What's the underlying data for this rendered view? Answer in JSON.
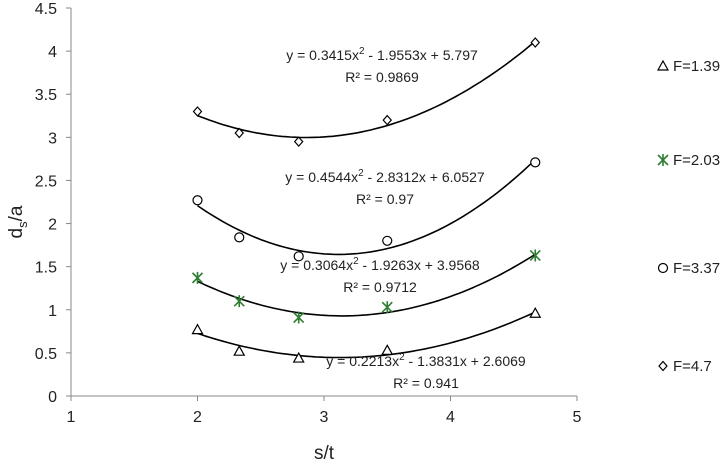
{
  "chart_data": {
    "type": "scatter",
    "xlabel": "s/t",
    "ylabel_main": "d",
    "ylabel_sub": "s",
    "ylabel_tail": "/a",
    "xlim": [
      1,
      5
    ],
    "ylim": [
      0,
      4.5
    ],
    "x_ticks": [
      "1",
      "2",
      "3",
      "4",
      "5"
    ],
    "y_ticks": [
      "0",
      "0.5",
      "1",
      "1.5",
      "2",
      "2.5",
      "3",
      "3.5",
      "4",
      "4.5"
    ],
    "grid": false,
    "legend_position": "right",
    "series": [
      {
        "name": "F=1.39",
        "marker": "triangle",
        "color": "#000000",
        "x": [
          2.0,
          2.33,
          2.8,
          3.5,
          4.67
        ],
        "y": [
          0.77,
          0.52,
          0.44,
          0.53,
          0.96
        ],
        "fit": {
          "a": 0.2213,
          "b": -1.3831,
          "c": 2.6069
        },
        "equation_parts": [
          "y = 0.2213x",
          "2",
          " - 1.3831x + 2.6069"
        ],
        "r2": "R² = 0.941"
      },
      {
        "name": "F=2.03",
        "marker": "asterisk",
        "color": "#2e7d32",
        "x": [
          2.0,
          2.33,
          2.8,
          3.5,
          4.67
        ],
        "y": [
          1.37,
          1.1,
          0.91,
          1.03,
          1.63
        ],
        "fit": {
          "a": 0.3064,
          "b": -1.9263,
          "c": 3.9568
        },
        "equation_parts": [
          "y = 0.3064x",
          "2",
          " - 1.9263x + 3.9568"
        ],
        "r2": "R² = 0.9712"
      },
      {
        "name": "F=3.37",
        "marker": "circle",
        "color": "#000000",
        "x": [
          2.0,
          2.33,
          2.8,
          3.5,
          4.67
        ],
        "y": [
          2.27,
          1.84,
          1.62,
          1.8,
          2.71
        ],
        "fit": {
          "a": 0.4544,
          "b": -2.8312,
          "c": 6.0527
        },
        "equation_parts": [
          "y = 0.4544x",
          "2",
          " - 2.8312x + 6.0527"
        ],
        "r2": "R² = 0.97"
      },
      {
        "name": "F=4.7",
        "marker": "diamond",
        "color": "#000000",
        "x": [
          2.0,
          2.33,
          2.8,
          3.5,
          4.67
        ],
        "y": [
          3.3,
          3.05,
          2.95,
          3.2,
          4.1
        ],
        "fit": {
          "a": 0.3415,
          "b": -1.9553,
          "c": 5.797
        },
        "equation_parts": [
          "y = 0.3415x",
          "2",
          " - 1.9553x + 5.797"
        ],
        "r2": "R² = 0.9869"
      }
    ]
  }
}
